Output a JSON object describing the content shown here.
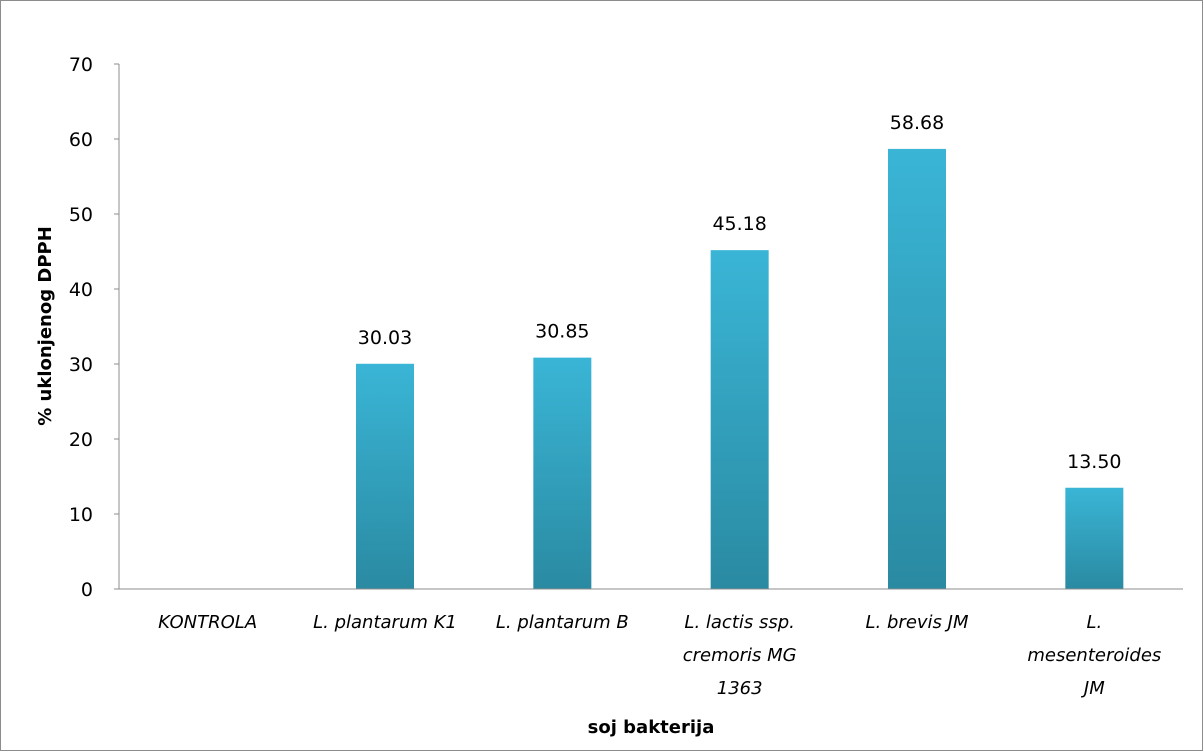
{
  "chart_data": {
    "type": "bar",
    "title": "",
    "xlabel": "soj bakterija",
    "ylabel": "% uklonjenog DPPH",
    "ylim": [
      0,
      70
    ],
    "yticks": [
      0,
      10,
      20,
      30,
      40,
      50,
      60,
      70
    ],
    "grid": false,
    "legend": "none",
    "categories": [
      [
        "KONTROLA"
      ],
      [
        "L. plantarum K1"
      ],
      [
        "L. plantarum B"
      ],
      [
        "L. lactis ssp.",
        "cremoris MG",
        "1363"
      ],
      [
        "L. brevis JM"
      ],
      [
        "L.",
        "mesenteroides",
        "JM"
      ]
    ],
    "values": [
      0,
      30.03,
      30.85,
      45.18,
      58.68,
      13.5
    ],
    "data_labels": [
      "",
      "30.03",
      "30.85",
      "45.18",
      "58.68",
      "13.50"
    ],
    "colors": {
      "bar_top": "#3ab5d6",
      "bar_bottom": "#2a8aa2",
      "axis": "#8c8c8c"
    }
  }
}
